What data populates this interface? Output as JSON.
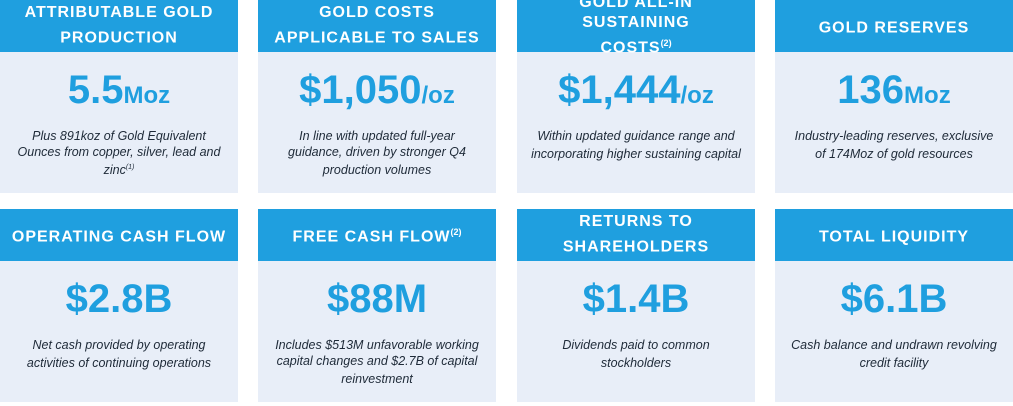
{
  "cards": [
    {
      "title": "ATTRIBUTABLE GOLD PRODUCTION",
      "title_sup": "",
      "value": "5.5",
      "unit": "Moz",
      "desc": "Plus 891koz of Gold Equivalent Ounces from copper, silver, lead and zinc",
      "desc_sup": "(1)"
    },
    {
      "title": "GOLD COSTS APPLICABLE TO SALES",
      "title_sup": "",
      "value": "$1,050",
      "unit": "/oz",
      "desc": "In line with updated full-year guidance, driven by stronger Q4 production volumes",
      "desc_sup": ""
    },
    {
      "title": "GOLD ALL-IN SUSTAINING COSTS",
      "title_sup": "(2)",
      "value": "$1,444",
      "unit": "/oz",
      "desc": "Within updated guidance range and incorporating higher sustaining capital",
      "desc_sup": ""
    },
    {
      "title": "GOLD RESERVES",
      "title_sup": "",
      "value": "136",
      "unit": "Moz",
      "desc": "Industry-leading reserves, exclusive of 174Moz of gold resources",
      "desc_sup": ""
    },
    {
      "title": "OPERATING CASH FLOW",
      "title_sup": "",
      "value": "$2.8B",
      "unit": "",
      "desc": "Net cash provided by operating activities of continuing operations",
      "desc_sup": ""
    },
    {
      "title": "FREE CASH FLOW",
      "title_sup": "(2)",
      "value": "$88M",
      "unit": "",
      "desc": "Includes $513M unfavorable working capital changes and $2.7B of capital reinvestment",
      "desc_sup": ""
    },
    {
      "title": "RETURNS TO SHAREHOLDERS",
      "title_sup": "",
      "value": "$1.4B",
      "unit": "",
      "desc": "Dividends paid to common stockholders",
      "desc_sup": ""
    },
    {
      "title": "TOTAL LIQUIDITY",
      "title_sup": "",
      "value": "$6.1B",
      "unit": "",
      "desc": "Cash balance and undrawn revolving credit facility",
      "desc_sup": ""
    }
  ],
  "colors": {
    "accent": "#1f9fdf",
    "card_bg": "#e8eef8",
    "text": "#1e2a38"
  }
}
